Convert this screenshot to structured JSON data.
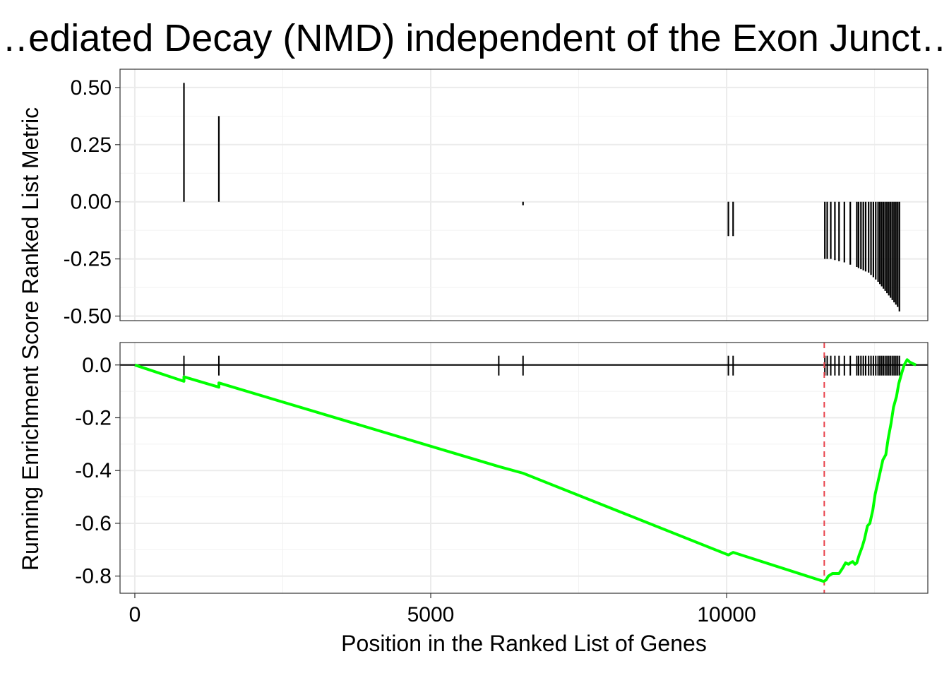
{
  "chart_data": {
    "type": "line",
    "title": "…ediated Decay (NMD) independent of the Exon Junct…",
    "xlabel": "Position in the Ranked List of Genes",
    "xlim": [
      -250,
      13400
    ],
    "x_ticks": [
      0,
      5000,
      10000
    ],
    "x_tick_labels": [
      "0",
      "5000",
      "10000"
    ],
    "grid": true,
    "panels": [
      {
        "id": "ranked-metric",
        "ylabel": "Ranked List Metric",
        "ylim": [
          -0.52,
          0.58
        ],
        "y_ticks": [
          0.5,
          0.25,
          0.0,
          -0.25,
          -0.5
        ],
        "y_tick_labels": [
          "0.50",
          "0.25",
          "0.00",
          "-0.25",
          "-0.50"
        ],
        "bars": [
          {
            "x": 830,
            "value": 0.52
          },
          {
            "x": 1420,
            "value": 0.375
          },
          {
            "x": 6560,
            "value": -0.015
          },
          {
            "x": 10030,
            "value": -0.15
          },
          {
            "x": 10110,
            "value": -0.15
          },
          {
            "x": 11660,
            "value": -0.25
          },
          {
            "x": 11700,
            "value": -0.25
          },
          {
            "x": 11760,
            "value": -0.25
          },
          {
            "x": 11830,
            "value": -0.255
          },
          {
            "x": 11900,
            "value": -0.26
          },
          {
            "x": 11990,
            "value": -0.265
          },
          {
            "x": 12090,
            "value": -0.275
          },
          {
            "x": 12200,
            "value": -0.285
          },
          {
            "x": 12230,
            "value": -0.29
          },
          {
            "x": 12270,
            "value": -0.295
          },
          {
            "x": 12310,
            "value": -0.3
          },
          {
            "x": 12350,
            "value": -0.305
          },
          {
            "x": 12400,
            "value": -0.31
          },
          {
            "x": 12440,
            "value": -0.32
          },
          {
            "x": 12480,
            "value": -0.33
          },
          {
            "x": 12520,
            "value": -0.34
          },
          {
            "x": 12560,
            "value": -0.35
          },
          {
            "x": 12590,
            "value": -0.36
          },
          {
            "x": 12620,
            "value": -0.37
          },
          {
            "x": 12650,
            "value": -0.38
          },
          {
            "x": 12680,
            "value": -0.39
          },
          {
            "x": 12710,
            "value": -0.4
          },
          {
            "x": 12740,
            "value": -0.41
          },
          {
            "x": 12770,
            "value": -0.42
          },
          {
            "x": 12800,
            "value": -0.43
          },
          {
            "x": 12830,
            "value": -0.44
          },
          {
            "x": 12860,
            "value": -0.45
          },
          {
            "x": 12890,
            "value": -0.46
          },
          {
            "x": 12920,
            "value": -0.48
          }
        ]
      },
      {
        "id": "running-es",
        "ylabel": "Running Enrichment Score",
        "ylim": [
          -0.865,
          0.085
        ],
        "y_ticks": [
          0.0,
          -0.2,
          -0.4,
          -0.6,
          -0.8
        ],
        "y_tick_labels": [
          "0.0",
          "-0.2",
          "-0.4",
          "-0.6",
          "-0.8"
        ],
        "hit_positions": [
          830,
          1420,
          6150,
          6560,
          10030,
          10110,
          11660,
          11700,
          11760,
          11830,
          11900,
          11990,
          12090,
          12200,
          12230,
          12270,
          12310,
          12350,
          12400,
          12440,
          12480,
          12520,
          12560,
          12590,
          12620,
          12650,
          12680,
          12710,
          12740,
          12770,
          12800,
          12830,
          12860,
          12890,
          12920
        ],
        "hline_y": 0.0,
        "vline_x": 11650,
        "series": [
          {
            "color": "#00ff00",
            "x": [
              0,
              830,
              830,
              1420,
              1420,
              6150,
              6150,
              6560,
              6560,
              10030,
              10110,
              10110,
              11640,
              11680,
              11720,
              11790,
              11830,
              11900,
              11960,
              12010,
              12060,
              12090,
              12130,
              12170,
              12200,
              12240,
              12290,
              12330,
              12380,
              12420,
              12470,
              12510,
              12550,
              12600,
              12640,
              12690,
              12730,
              12780,
              12820,
              12870,
              12910,
              12960,
              13000,
              13050,
              13100,
              13200
            ],
            "y": [
              0.0,
              -0.062,
              -0.045,
              -0.084,
              -0.068,
              -0.385,
              -0.385,
              -0.41,
              -0.41,
              -0.72,
              -0.71,
              -0.71,
              -0.82,
              -0.815,
              -0.8,
              -0.79,
              -0.79,
              -0.79,
              -0.77,
              -0.75,
              -0.755,
              -0.75,
              -0.745,
              -0.755,
              -0.75,
              -0.72,
              -0.69,
              -0.66,
              -0.61,
              -0.6,
              -0.55,
              -0.49,
              -0.45,
              -0.4,
              -0.36,
              -0.34,
              -0.28,
              -0.22,
              -0.16,
              -0.12,
              -0.07,
              -0.03,
              0.0,
              0.02,
              0.01,
              0.0
            ]
          }
        ]
      }
    ]
  }
}
